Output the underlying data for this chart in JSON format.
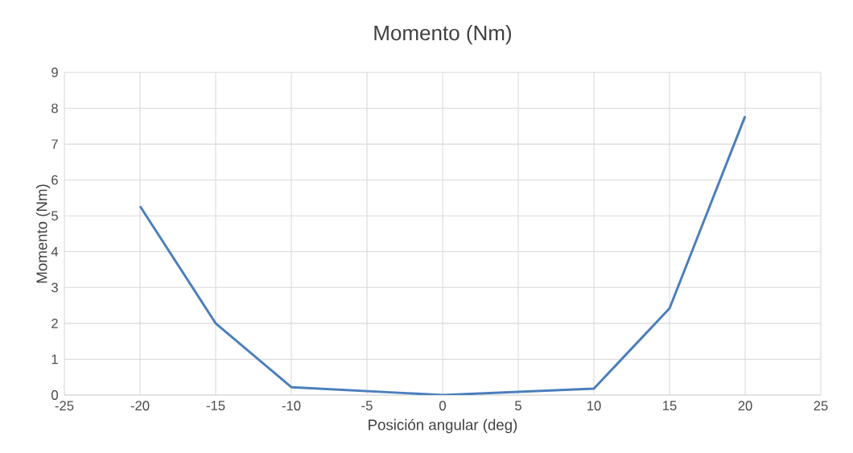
{
  "chart_data": {
    "type": "line",
    "title": "Momento (Nm)",
    "xlabel": "Posición angular (deg)",
    "ylabel": "Momento (Nm)",
    "x": [
      -20,
      -15,
      -10,
      0,
      10,
      15,
      20
    ],
    "series": [
      {
        "color": "#4a7ebb",
        "values": [
          5.27,
          2.0,
          0.22,
          0.0,
          0.18,
          2.42,
          7.78
        ]
      }
    ],
    "xlim": [
      -25,
      25
    ],
    "xticks": [
      -25,
      -20,
      -15,
      -10,
      -5,
      0,
      5,
      10,
      15,
      20,
      25
    ],
    "ylim": [
      0,
      9
    ],
    "yticks": [
      0,
      1,
      2,
      3,
      4,
      5,
      6,
      7,
      8,
      9
    ],
    "grid": true,
    "marker": "none",
    "line_style": "solid"
  }
}
